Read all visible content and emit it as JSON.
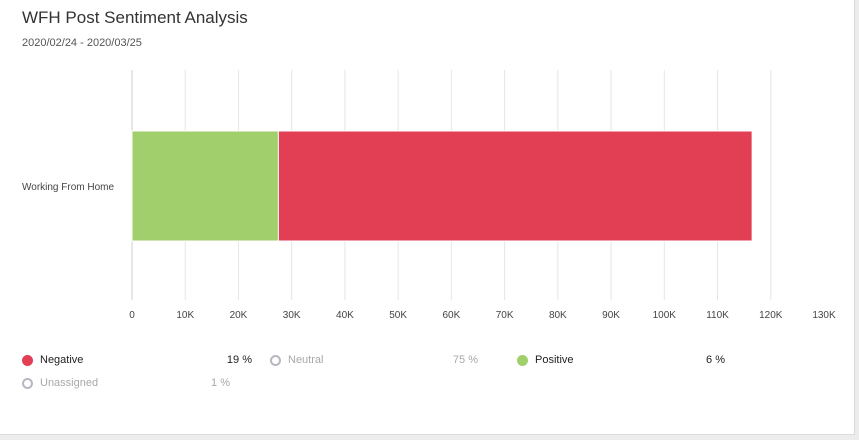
{
  "header": {
    "title": "WFH Post Sentiment Analysis",
    "date_range": "2020/02/24 - 2020/03/25"
  },
  "chart_data": {
    "type": "bar",
    "orientation": "horizontal",
    "stacked": true,
    "categories": [
      "Working From Home"
    ],
    "series": [
      {
        "name": "Positive",
        "values": [
          27500
        ],
        "color": "#a1cf6b"
      },
      {
        "name": "Negative",
        "values": [
          89000
        ],
        "color": "#e33f54"
      }
    ],
    "xlim": [
      0,
      130000
    ],
    "x_ticks": [
      {
        "value": 0,
        "label": "0"
      },
      {
        "value": 10000,
        "label": "10K"
      },
      {
        "value": 20000,
        "label": "20K"
      },
      {
        "value": 30000,
        "label": "30K"
      },
      {
        "value": 40000,
        "label": "40K"
      },
      {
        "value": 50000,
        "label": "50K"
      },
      {
        "value": 60000,
        "label": "60K"
      },
      {
        "value": 70000,
        "label": "70K"
      },
      {
        "value": 80000,
        "label": "80K"
      },
      {
        "value": 90000,
        "label": "90K"
      },
      {
        "value": 100000,
        "label": "100K"
      },
      {
        "value": 110000,
        "label": "110K"
      },
      {
        "value": 120000,
        "label": "120K"
      },
      {
        "value": 130000,
        "label": "130K"
      }
    ],
    "grid": true,
    "legend_position": "bottom"
  },
  "legend": {
    "items": [
      {
        "name": "Negative",
        "percent": "19 %",
        "color": "#e33f54",
        "active": true
      },
      {
        "name": "Neutral",
        "percent": "75 %",
        "color": "#b7b7c2",
        "active": false
      },
      {
        "name": "Positive",
        "percent": "6 %",
        "color": "#a1cf6b",
        "active": true
      },
      {
        "name": "Unassigned",
        "percent": "1 %",
        "color": "#b7b7c2",
        "active": false
      }
    ]
  }
}
